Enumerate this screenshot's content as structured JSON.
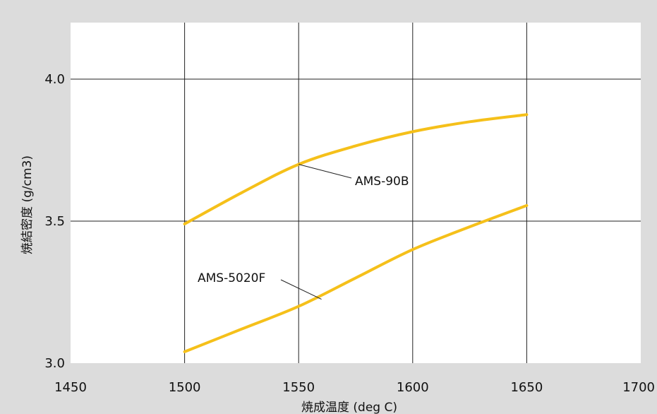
{
  "chart_data": {
    "type": "line",
    "xlabel": "焼成温度 (deg C)",
    "ylabel": "焼結密度 (g/cm3)",
    "xlim": [
      1450,
      1700
    ],
    "ylim": [
      3.0,
      4.0
    ],
    "x_ticks": [
      "1450",
      "1500",
      "1550",
      "1600",
      "1650",
      "1700"
    ],
    "y_ticks": [
      "3.0",
      "3.5",
      "4.0"
    ],
    "grid": true,
    "line_color": "#f5c01a",
    "series": [
      {
        "name": "AMS-90B",
        "x": [
          1500,
          1525,
          1550,
          1575,
          1600,
          1625,
          1650
        ],
        "y": [
          3.49,
          3.6,
          3.7,
          3.765,
          3.815,
          3.85,
          3.875
        ],
        "label_anchor": [
          1550,
          3.7
        ]
      },
      {
        "name": "AMS-5020F",
        "x": [
          1500,
          1525,
          1550,
          1575,
          1600,
          1625,
          1650
        ],
        "y": [
          3.04,
          3.12,
          3.2,
          3.3,
          3.4,
          3.48,
          3.555
        ],
        "label_anchor": [
          1560,
          3.225
        ]
      }
    ]
  }
}
